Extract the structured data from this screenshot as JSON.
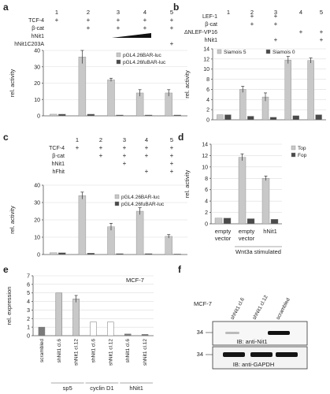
{
  "panels": {
    "a": {
      "letter": "a",
      "lanes": [
        "1",
        "2",
        "3",
        "4",
        "5"
      ],
      "conditions": [
        {
          "label": "TCF-4",
          "marks": [
            "+",
            "+",
            "+",
            "+",
            "+"
          ]
        },
        {
          "label": "β-cat",
          "marks": [
            "",
            "+",
            "+",
            "+",
            "+"
          ]
        },
        {
          "label": "hNit1",
          "marks": [
            "",
            "",
            "wedge",
            "wedge",
            ""
          ]
        },
        {
          "label": "hNit1C203A",
          "marks": [
            "",
            "",
            "",
            "",
            "+"
          ]
        }
      ]
    },
    "b": {
      "letter": "b",
      "lanes": [
        "1",
        "2",
        "3",
        "4",
        "5"
      ],
      "conditions": [
        {
          "label": "LEF-1",
          "marks": [
            "",
            "+",
            "+",
            "",
            ""
          ]
        },
        {
          "label": "β-cat",
          "marks": [
            "",
            "+",
            "+",
            "",
            ""
          ]
        },
        {
          "label": "ΔNLEF-VP16",
          "marks": [
            "",
            "",
            "",
            "+",
            "+"
          ]
        },
        {
          "label": "hNit1",
          "marks": [
            "",
            "",
            "+",
            "",
            "+"
          ]
        }
      ]
    },
    "c": {
      "letter": "c",
      "lanes": [
        "1",
        "2",
        "3",
        "4",
        "5"
      ],
      "conditions": [
        {
          "label": "TCF-4",
          "marks": [
            "+",
            "+",
            "+",
            "+",
            "+"
          ]
        },
        {
          "label": "β-cat",
          "marks": [
            "",
            "+",
            "+",
            "+",
            "+"
          ]
        },
        {
          "label": "hNit1",
          "marks": [
            "",
            "",
            "+",
            "",
            "+"
          ]
        },
        {
          "label": "hFhit",
          "marks": [
            "",
            "",
            "",
            "+",
            "+"
          ]
        }
      ]
    },
    "d": {
      "letter": "d",
      "group_labels": [
        "empty vector",
        "empty vector",
        "hNit1"
      ],
      "group_label_lines": [
        [
          "empty",
          "vector"
        ],
        [
          "empty",
          "vector"
        ],
        [
          "hNit1"
        ]
      ],
      "stim_label": "Wnt3a stimulated"
    },
    "e": {
      "letter": "e",
      "cell_line": "MCF-7",
      "bar_labels": [
        "scrambled",
        "shNit1 cl.6",
        "shNit1 cl.12",
        "shNit1 cl.6",
        "shNit1 cl.12",
        "shNit1 cl.6",
        "shNit1 cl.12"
      ],
      "gene_labels": [
        "sp5",
        "cyclin D1",
        "hNit1"
      ]
    },
    "f": {
      "letter": "f",
      "cell_line": "MCF-7",
      "lane_labels": [
        "shNit1 cl.6",
        "shNit1 cl.12",
        "scrambled"
      ],
      "mw_top": "34",
      "mw_bottom": "34",
      "blot_top_label": "IB: anti-Nit1",
      "blot_bottom_label": "IB: anti-GAPDH"
    }
  },
  "colors": {
    "bar_light": "#c8c8c8",
    "bar_dark": "#4a4a4a",
    "axis": "#555555"
  },
  "chart_data": [
    {
      "panel": "a",
      "type": "bar",
      "ylabel": "rel. activity",
      "ylim": [
        0,
        40
      ],
      "yticks": [
        0,
        10,
        20,
        30,
        40
      ],
      "categories": [
        "1",
        "2",
        "3",
        "4",
        "5"
      ],
      "series": [
        {
          "name": "pGL4.26BAR-luc",
          "values": [
            1,
            36,
            22,
            14,
            14
          ],
          "errors": [
            0,
            4,
            1,
            2,
            2
          ]
        },
        {
          "name": "pGL4.26fuBAR-luc",
          "values": [
            1,
            1,
            0.5,
            0.5,
            0.5
          ],
          "errors": [
            0,
            0,
            0,
            0,
            0
          ]
        }
      ]
    },
    {
      "panel": "b",
      "type": "bar",
      "ylabel": "rel. activity",
      "ylim": [
        0,
        14
      ],
      "yticks": [
        0,
        2,
        4,
        6,
        8,
        10,
        12,
        14
      ],
      "categories": [
        "1",
        "2",
        "3",
        "4",
        "5"
      ],
      "series": [
        {
          "name": "Siamois 5",
          "values": [
            1,
            6,
            4.5,
            11.8,
            11.7
          ],
          "errors": [
            0,
            0.6,
            0.8,
            0.7,
            0.5
          ]
        },
        {
          "name": "Siamois 0",
          "values": [
            1,
            0.7,
            0.5,
            0.8,
            1
          ],
          "errors": [
            0,
            0,
            0,
            0,
            0
          ]
        }
      ]
    },
    {
      "panel": "c",
      "type": "bar",
      "ylabel": "rel. activity",
      "ylim": [
        0,
        40
      ],
      "yticks": [
        0,
        10,
        20,
        30,
        40
      ],
      "categories": [
        "1",
        "2",
        "3",
        "4",
        "5"
      ],
      "series": [
        {
          "name": "pGL4.26BAR-luc",
          "values": [
            1,
            34,
            16,
            25,
            10.5
          ],
          "errors": [
            0,
            2,
            2,
            2,
            1
          ]
        },
        {
          "name": "pGL4.26fuBAR-luc",
          "values": [
            1,
            0.8,
            0.5,
            0.5,
            0.3
          ],
          "errors": [
            0,
            0,
            0,
            0,
            0
          ]
        }
      ]
    },
    {
      "panel": "d",
      "type": "bar",
      "ylabel": "rel. activity",
      "ylim": [
        0,
        14
      ],
      "yticks": [
        0,
        2,
        4,
        6,
        8,
        10,
        12,
        14
      ],
      "categories": [
        "empty vector",
        "empty vector",
        "hNit1"
      ],
      "series": [
        {
          "name": "Top",
          "values": [
            1,
            11.7,
            8
          ],
          "errors": [
            0,
            0.6,
            0.4
          ]
        },
        {
          "name": "Fop",
          "values": [
            1,
            0.9,
            0.8
          ],
          "errors": [
            0,
            0,
            0
          ]
        }
      ]
    },
    {
      "panel": "e",
      "type": "bar",
      "ylabel": "rel. expression",
      "ylim": [
        0,
        7
      ],
      "yticks": [
        0,
        1,
        2,
        3,
        4,
        5,
        6,
        7
      ],
      "categories": [
        "scrambled",
        "shNit1 cl.6",
        "shNit1 cl.12",
        "shNit1 cl.6",
        "shNit1 cl.12",
        "shNit1 cl.6",
        "shNit1 cl.12"
      ],
      "values": [
        1,
        5,
        4.3,
        1.6,
        1.6,
        0.2,
        0.15
      ],
      "errors": [
        0,
        0,
        0.4,
        0,
        0,
        0,
        0
      ],
      "bar_styles": [
        "dark",
        "light",
        "light",
        "white",
        "white",
        "dark",
        "dark"
      ]
    }
  ]
}
